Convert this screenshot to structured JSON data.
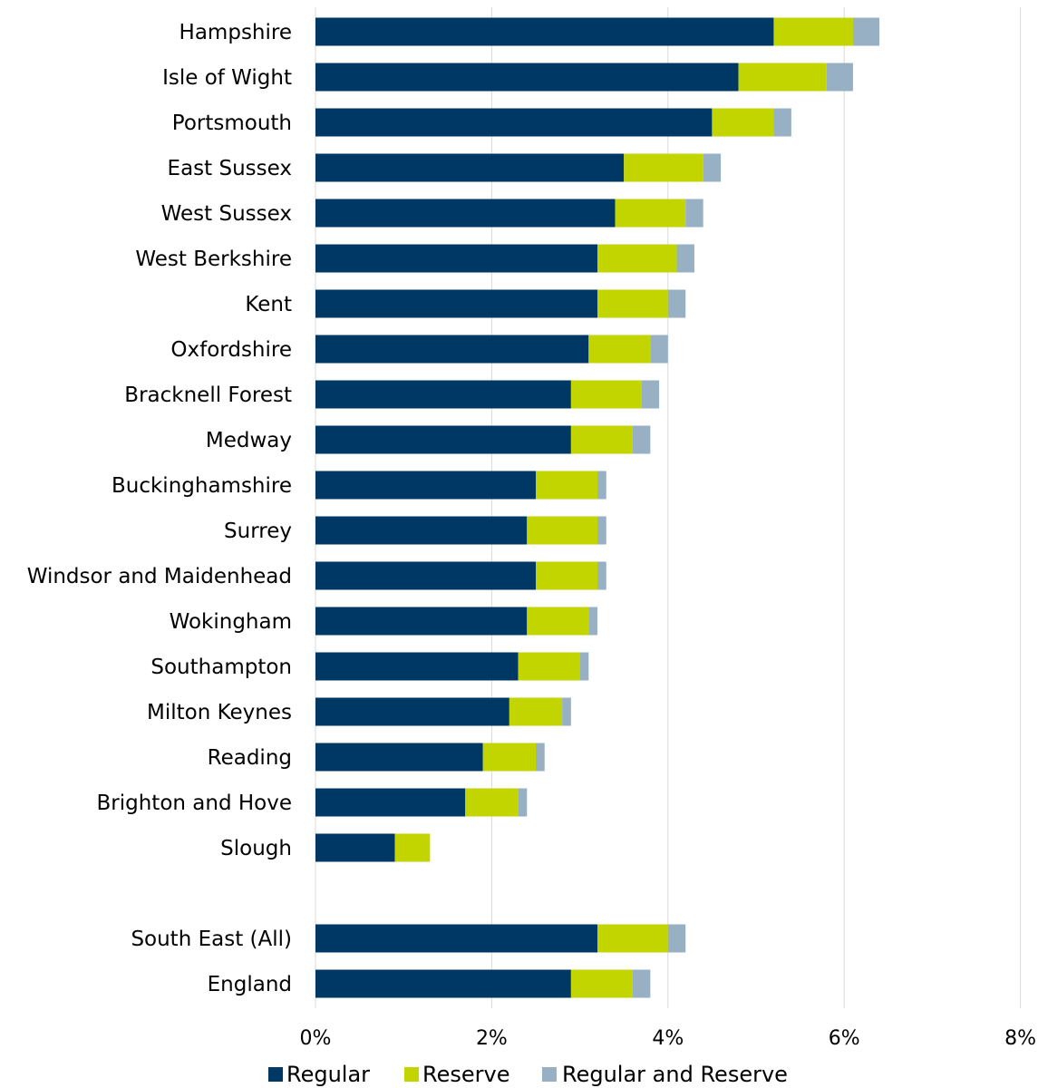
{
  "chart_data": {
    "type": "bar",
    "orientation": "horizontal",
    "stacked": true,
    "categories": [
      "Hampshire",
      "Isle of Wight",
      "Portsmouth",
      "East Sussex",
      "West Sussex",
      "West Berkshire",
      "Kent",
      "Oxfordshire",
      "Bracknell Forest",
      "Medway",
      "Buckinghamshire",
      "Surrey",
      "Windsor and Maidenhead",
      "Wokingham",
      "Southampton",
      "Milton Keynes",
      "Reading",
      "Brighton and Hove",
      "Slough",
      "South East (All)",
      "England"
    ],
    "series": [
      {
        "name": "Regular",
        "color": "#003865",
        "values": [
          5.2,
          4.8,
          4.5,
          3.5,
          3.4,
          3.2,
          3.2,
          3.1,
          2.9,
          2.9,
          2.5,
          2.4,
          2.5,
          2.4,
          2.3,
          2.2,
          1.9,
          1.7,
          0.9,
          3.2,
          2.9
        ]
      },
      {
        "name": "Reserve",
        "color": "#c2d500",
        "values": [
          0.9,
          1.0,
          0.7,
          0.9,
          0.8,
          0.9,
          0.8,
          0.7,
          0.8,
          0.7,
          0.7,
          0.8,
          0.7,
          0.7,
          0.7,
          0.6,
          0.6,
          0.6,
          0.4,
          0.8,
          0.7
        ]
      },
      {
        "name": "Regular and Reserve",
        "color": "#98b0c3",
        "values": [
          0.3,
          0.3,
          0.2,
          0.2,
          0.2,
          0.2,
          0.2,
          0.2,
          0.2,
          0.2,
          0.1,
          0.1,
          0.1,
          0.1,
          0.1,
          0.1,
          0.1,
          0.1,
          0.0,
          0.2,
          0.2
        ]
      }
    ],
    "xlim": [
      0,
      8
    ],
    "xticks": [
      "0%",
      "2%",
      "4%",
      "6%",
      "8%"
    ],
    "grid": true,
    "legend": "bottom",
    "title": "",
    "xlabel": "",
    "ylabel": ""
  }
}
